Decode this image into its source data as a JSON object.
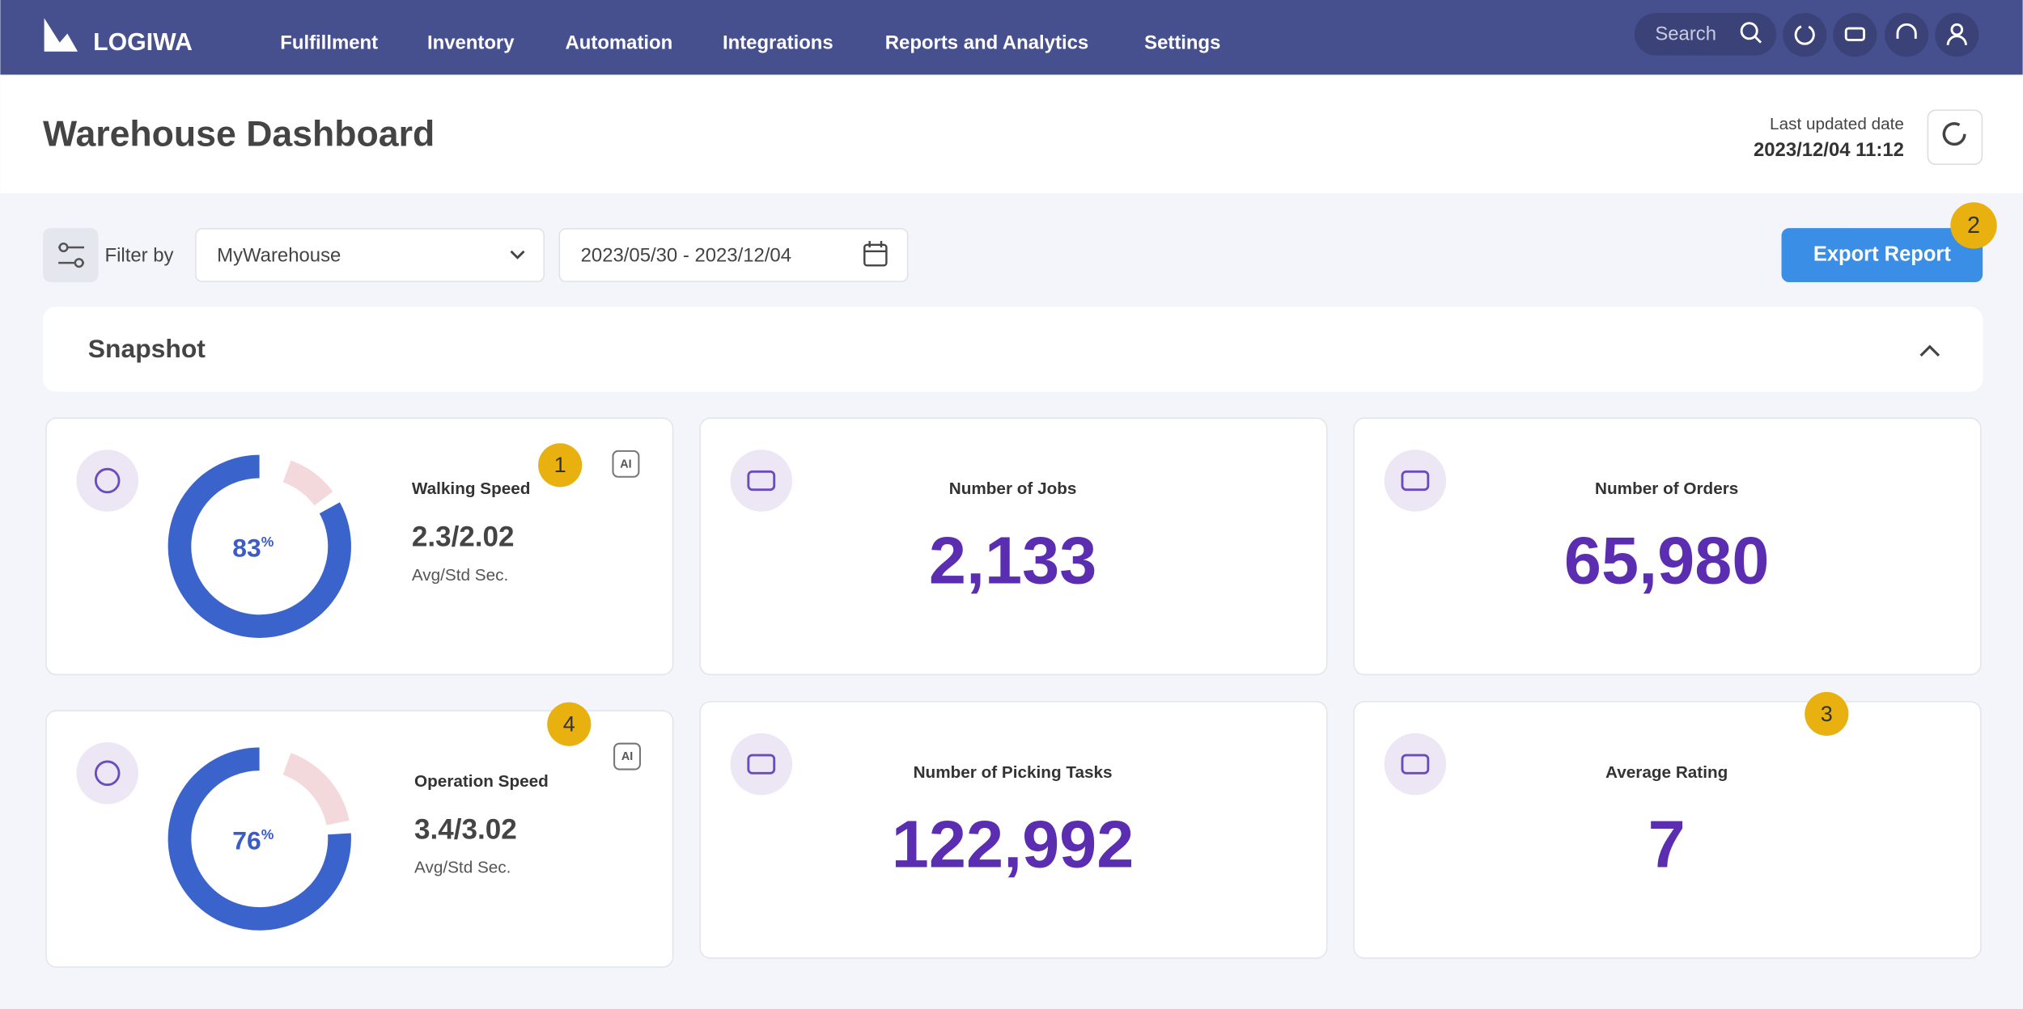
{
  "nav": {
    "brand": "LOGIWA",
    "items": [
      "Fulfillment",
      "Inventory",
      "Automation",
      "Integrations",
      "Reports and Analytics",
      "Settings"
    ],
    "search_placeholder": "Search"
  },
  "header": {
    "title": "Warehouse Dashboard",
    "last_updated_label": "Last updated date",
    "last_updated": "2023/12/04 11:12"
  },
  "filters": {
    "label": "Filter by",
    "warehouse": "MyWarehouse",
    "date_range": "2023/05/30 - 2023/12/04",
    "export_button": "Export Report",
    "export_badge": "2"
  },
  "snapshot": {
    "title": "Snapshot",
    "percent_sign": "%",
    "speed_cards": [
      {
        "title": "Walking Speed",
        "percent": 83,
        "ratio": "2.3/2.02",
        "unit": "Avg/Std Sec.",
        "ai_tag": "AI",
        "badge": "1"
      },
      {
        "title": "Operation Speed",
        "percent": 76,
        "ratio": "3.4/3.02",
        "unit": "Avg/Std Sec.",
        "ai_tag": "AI",
        "badge": "4"
      }
    ],
    "stat_cards": [
      {
        "title": "Number of Jobs",
        "value": "2,133"
      },
      {
        "title": "Number of Orders",
        "value": "65,980"
      },
      {
        "title": "Number of Picking Tasks",
        "value": "122,992"
      },
      {
        "title": "Average Rating",
        "value": "7",
        "badge": "3"
      }
    ]
  }
}
